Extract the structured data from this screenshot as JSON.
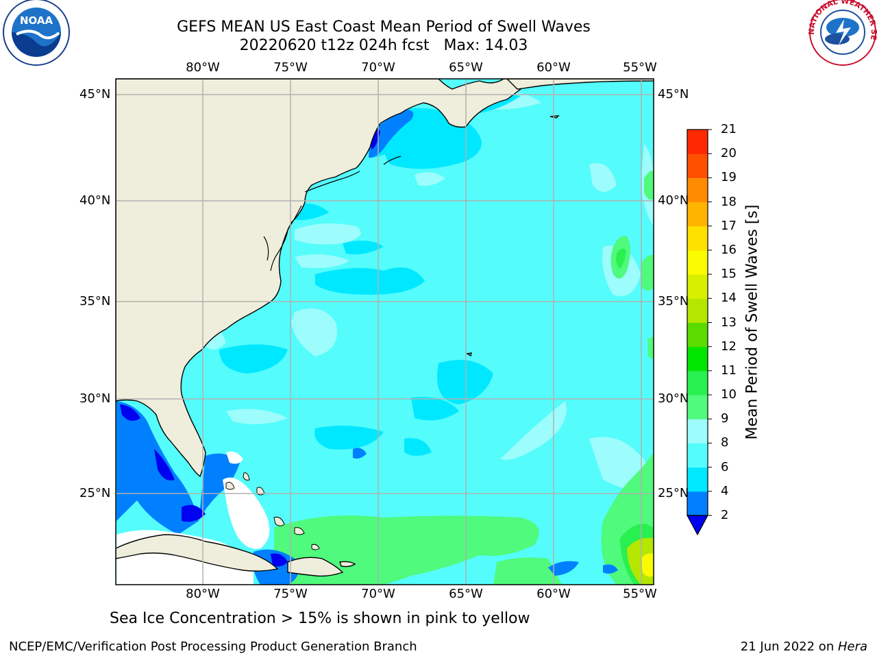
{
  "title": {
    "line1": "GEFS MEAN US East Coast Mean Period of Swell Waves",
    "line2": "20220620 t12z 024h fcst   Max: 14.03"
  },
  "map": {
    "lon_labels": [
      "80°W",
      "75°W",
      "70°W",
      "65°W",
      "60°W",
      "55°W"
    ],
    "lat_labels": [
      "45°N",
      "40°N",
      "35°N",
      "30°N",
      "25°N"
    ],
    "colors": {
      "land": "#efeedc",
      "ocean_base": "#54fcfc",
      "grid": "#b0b0b0"
    }
  },
  "colorbar": {
    "label": "Mean Period of Swell Waves [s]",
    "ticks": [
      "2",
      "4",
      "6",
      "8",
      "9",
      "10",
      "11",
      "12",
      "13",
      "14",
      "15",
      "16",
      "17",
      "18",
      "19",
      "20",
      "21"
    ],
    "colors": [
      "#0000f0",
      "#0080ff",
      "#00e8ff",
      "#54fcfc",
      "#9dfcfc",
      "#50fa7c",
      "#28f050",
      "#00e600",
      "#5adc00",
      "#b4e600",
      "#d8f000",
      "#fafa00",
      "#ffe100",
      "#ffb400",
      "#ff8c00",
      "#ff5000",
      "#ff2800",
      "#ff0000"
    ]
  },
  "footnote": "Sea Ice Concentration > 15% is shown in pink to yellow",
  "footer": {
    "left": "NCEP/EMC/Verification Post Processing Product Generation Branch",
    "right_date": "21 Jun 2022 on ",
    "right_host": "Hera"
  },
  "logos": {
    "left": "NOAA",
    "right": "NATIONAL WEATHER SERVICE"
  }
}
